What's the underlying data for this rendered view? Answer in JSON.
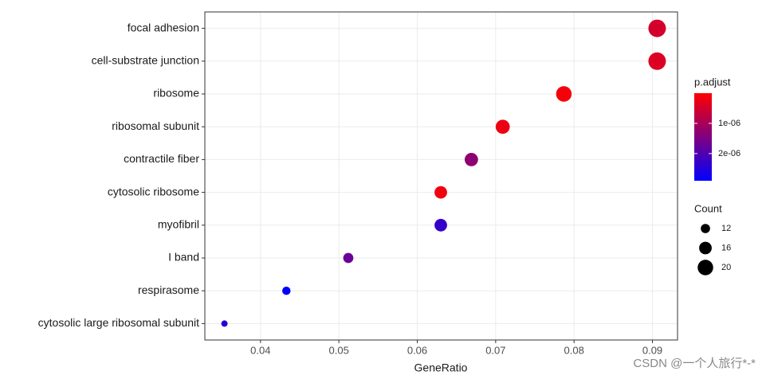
{
  "chart_data": {
    "type": "dot",
    "xlabel": "GeneRatio",
    "categories": [
      "focal adhesion",
      "cell-substrate junction",
      "ribosome",
      "ribosomal subunit",
      "contractile fiber",
      "cytosolic ribosome",
      "myofibril",
      "I band",
      "respirasome",
      "cytosolic large ribosomal subunit"
    ],
    "x": [
      0.0906,
      0.0906,
      0.0787,
      0.0709,
      0.0669,
      0.063,
      0.063,
      0.0512,
      0.0433,
      0.0354
    ],
    "count": [
      23,
      23,
      20,
      18,
      17,
      16,
      16,
      13,
      11,
      9
    ],
    "p_adjust": [
      5e-07,
      4e-07,
      1e-07,
      2e-07,
      1.3e-06,
      1.5e-07,
      2.3e-06,
      1.7e-06,
      2.9e-06,
      2.4e-06
    ],
    "xlim": [
      0.0329,
      0.0932
    ],
    "xticks": [
      0.04,
      0.05,
      0.06,
      0.07,
      0.08,
      0.09
    ],
    "grid": true,
    "color_title": "p.adjust",
    "colorlim": [
      0,
      2.9e-06
    ],
    "color_low": "#ff0000",
    "color_high": "#0000ff",
    "colorticks": [
      {
        "value": 1e-06,
        "label": "1e-06"
      },
      {
        "value": 2e-06,
        "label": "2e-06"
      }
    ],
    "size_title": "Count",
    "sizeticks": [
      12,
      16,
      20
    ],
    "watermark": "CSDN @一个人旅行*-*"
  }
}
